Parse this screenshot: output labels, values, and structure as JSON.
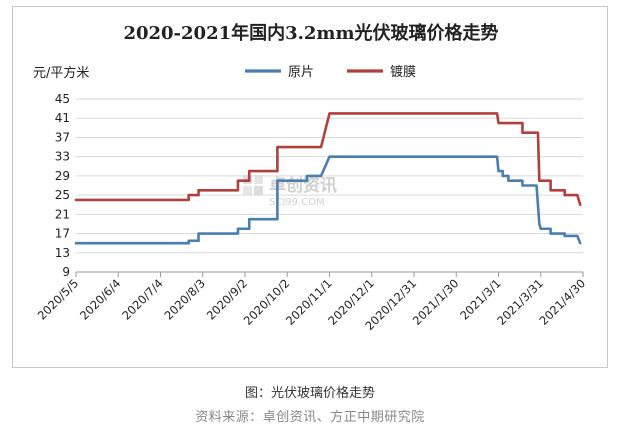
{
  "chart_data": {
    "type": "line",
    "title": "2020-2021年国内3.2mm光伏玻璃价格走势",
    "ylabel": "元/平方米",
    "ylim": [
      9,
      45
    ],
    "yticks": [
      9,
      13,
      17,
      21,
      25,
      29,
      33,
      37,
      41,
      45
    ],
    "xlim": [
      "2020-05-05",
      "2021-04-30"
    ],
    "x_tick_labels": [
      "2020/5/5",
      "2020/6/4",
      "2020/7/4",
      "2020/8/3",
      "2020/9/2",
      "2020/10/2",
      "2020/11/1",
      "2020/12/1",
      "2020/12/31",
      "2021/1/30",
      "2021/3/1",
      "2021/3/31",
      "2021/4/30"
    ],
    "x_ticks": [
      "2020-05-05",
      "2020-06-04",
      "2020-07-04",
      "2020-08-03",
      "2020-09-02",
      "2020-10-02",
      "2020-11-01",
      "2020-12-01",
      "2020-12-31",
      "2021-01-30",
      "2021-03-01",
      "2021-03-31",
      "2021-04-30"
    ],
    "grid": "horizontal",
    "legend_position": "top-center",
    "series": [
      {
        "name": "原片",
        "color": "#4a7eb0",
        "points": [
          [
            "2020-05-05",
            15
          ],
          [
            "2020-07-24",
            15
          ],
          [
            "2020-07-24",
            15.5
          ],
          [
            "2020-07-31",
            15.5
          ],
          [
            "2020-07-31",
            17
          ],
          [
            "2020-08-28",
            17
          ],
          [
            "2020-08-28",
            18
          ],
          [
            "2020-09-05",
            18
          ],
          [
            "2020-09-05",
            20
          ],
          [
            "2020-09-25",
            20
          ],
          [
            "2020-09-25",
            28
          ],
          [
            "2020-10-16",
            28
          ],
          [
            "2020-10-16",
            29
          ],
          [
            "2020-10-26",
            29
          ],
          [
            "2020-11-01",
            33
          ],
          [
            "2021-02-28",
            33
          ],
          [
            "2021-03-01",
            30
          ],
          [
            "2021-03-04",
            30
          ],
          [
            "2021-03-04",
            29
          ],
          [
            "2021-03-08",
            29
          ],
          [
            "2021-03-08",
            28
          ],
          [
            "2021-03-18",
            28
          ],
          [
            "2021-03-18",
            27
          ],
          [
            "2021-03-28",
            27
          ],
          [
            "2021-03-30",
            19
          ],
          [
            "2021-03-31",
            18
          ],
          [
            "2021-04-07",
            18
          ],
          [
            "2021-04-07",
            17
          ],
          [
            "2021-04-17",
            17
          ],
          [
            "2021-04-17",
            16.5
          ],
          [
            "2021-04-26",
            16.5
          ],
          [
            "2021-04-28",
            15
          ]
        ]
      },
      {
        "name": "镀膜",
        "color": "#b0403c",
        "points": [
          [
            "2020-05-05",
            24
          ],
          [
            "2020-07-24",
            24
          ],
          [
            "2020-07-24",
            25
          ],
          [
            "2020-07-31",
            25
          ],
          [
            "2020-07-31",
            26
          ],
          [
            "2020-08-28",
            26
          ],
          [
            "2020-08-28",
            28
          ],
          [
            "2020-09-05",
            28
          ],
          [
            "2020-09-05",
            30
          ],
          [
            "2020-09-25",
            30
          ],
          [
            "2020-09-25",
            35
          ],
          [
            "2020-10-26",
            35
          ],
          [
            "2020-11-01",
            42
          ],
          [
            "2021-02-28",
            42
          ],
          [
            "2021-03-01",
            40
          ],
          [
            "2021-03-18",
            40
          ],
          [
            "2021-03-18",
            38
          ],
          [
            "2021-03-29",
            38
          ],
          [
            "2021-03-30",
            28
          ],
          [
            "2021-04-07",
            28
          ],
          [
            "2021-04-07",
            26
          ],
          [
            "2021-04-17",
            26
          ],
          [
            "2021-04-17",
            25
          ],
          [
            "2021-04-26",
            25
          ],
          [
            "2021-04-28",
            23
          ]
        ]
      }
    ],
    "watermark": {
      "name": "卓创资讯",
      "site": "SCI99.COM"
    }
  },
  "caption": "图：光伏玻璃价格走势",
  "source": "资料来源：卓创资讯、方正中期研究院"
}
